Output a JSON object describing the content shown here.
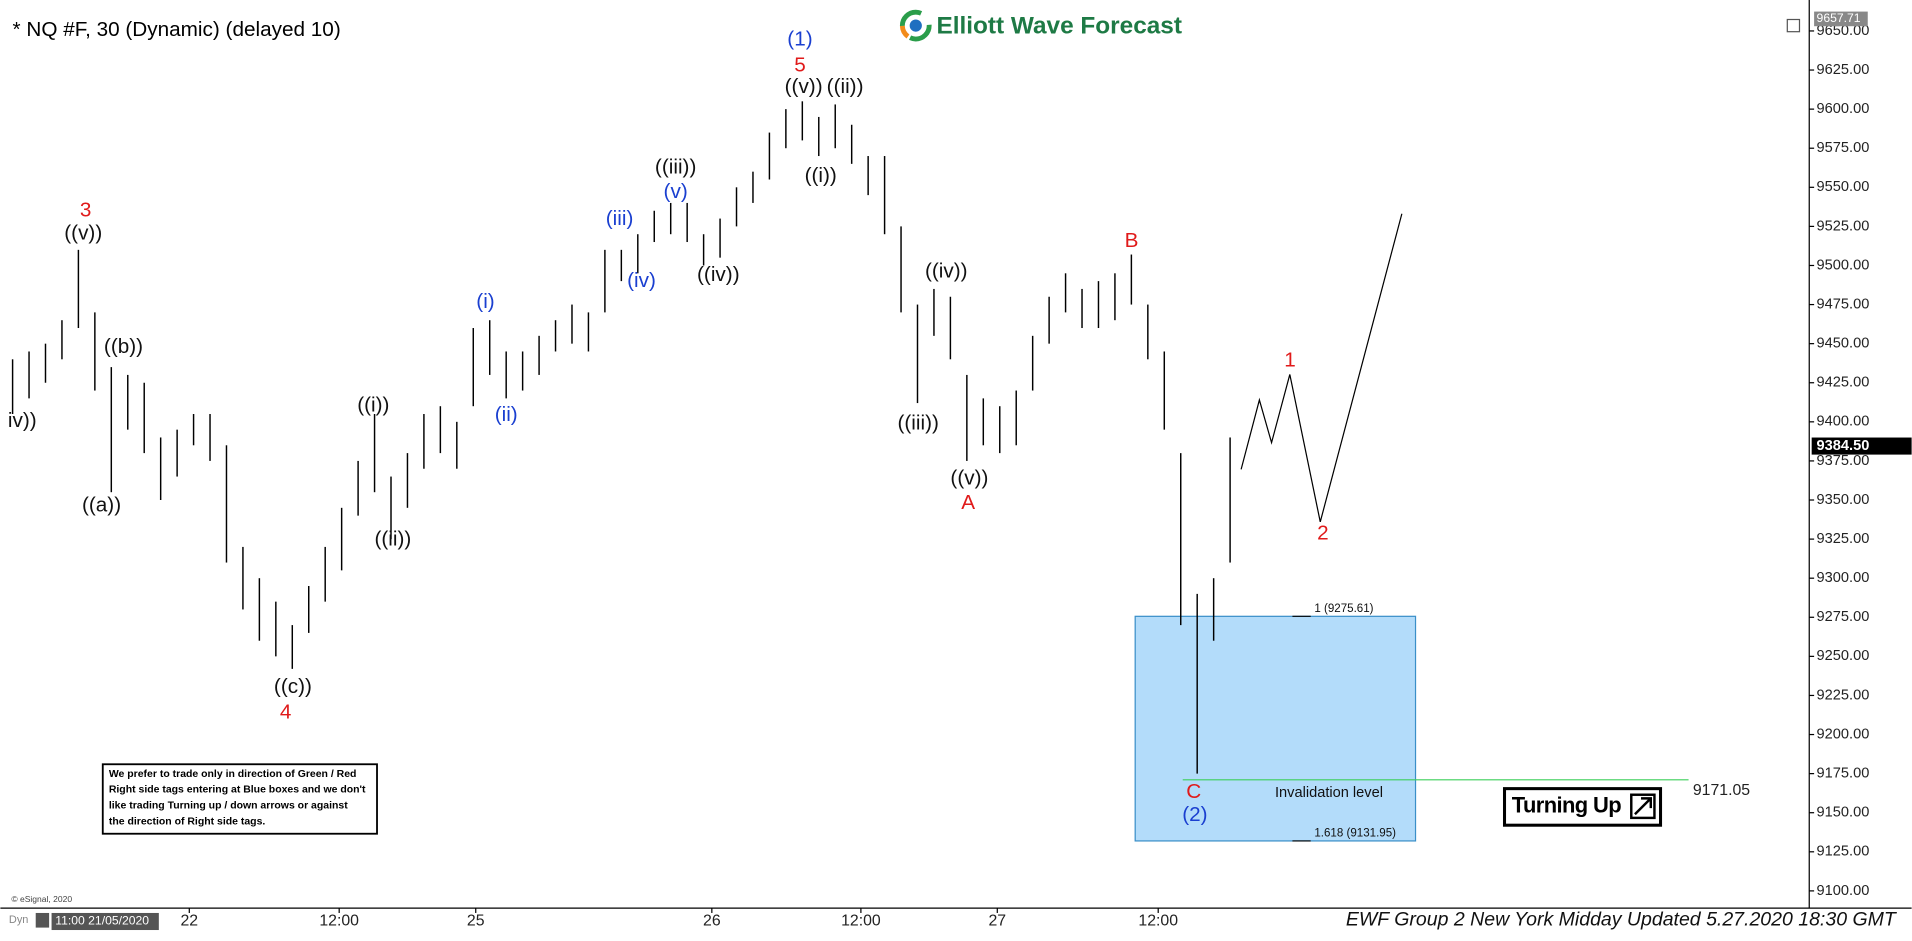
{
  "chart_data": {
    "type": "hilo",
    "title": "* NQ #F, 30 (Dynamic) (delayed 10)",
    "logo": "Elliott Wave Forecast",
    "color": "#000000",
    "high": [
      9440,
      9445,
      9450,
      9465,
      9510,
      9470,
      9435,
      9430,
      9425,
      9390,
      9395,
      9405,
      9405,
      9385,
      9320,
      9300,
      9285,
      9270,
      9295,
      9320,
      9345,
      9375,
      9405,
      9365,
      9380,
      9405,
      9410,
      9400,
      9460,
      9465,
      9445,
      9445,
      9455,
      9465,
      9475,
      9470,
      9510,
      9510,
      9520,
      9535,
      9540,
      9540,
      9520,
      9530,
      9550,
      9560,
      9585,
      9600,
      9605,
      9595,
      9603,
      9590,
      9570,
      9570,
      9525,
      9475,
      9485,
      9480,
      9430,
      9415,
      9410,
      9420,
      9455,
      9480,
      9495,
      9485,
      9490,
      9495,
      9507,
      9475,
      9445,
      9380,
      9290,
      9300,
      9390
    ],
    "low": [
      9405,
      9415,
      9425,
      9440,
      9460,
      9420,
      9355,
      9395,
      9380,
      9350,
      9365,
      9385,
      9375,
      9310,
      9280,
      9260,
      9250,
      9242,
      9265,
      9285,
      9305,
      9340,
      9355,
      9325,
      9345,
      9370,
      9380,
      9370,
      9410,
      9430,
      9415,
      9420,
      9430,
      9445,
      9450,
      9445,
      9470,
      9490,
      9495,
      9515,
      9520,
      9515,
      9500,
      9505,
      9525,
      9540,
      9555,
      9575,
      9580,
      9570,
      9575,
      9565,
      9545,
      9520,
      9470,
      9412,
      9455,
      9440,
      9375,
      9385,
      9380,
      9385,
      9420,
      9450,
      9470,
      9460,
      9460,
      9465,
      9475,
      9440,
      9395,
      9270,
      9175,
      9260,
      9310
    ],
    "xlim": [
      -0.15,
      109.2
    ],
    "xticks": [
      {
        "value": 10.74,
        "label": "22"
      },
      {
        "value": 19.85,
        "label": "12:00"
      },
      {
        "value": 28.15,
        "label": "25"
      },
      {
        "value": 42.5,
        "label": "26"
      },
      {
        "value": 51.56,
        "label": "12:00"
      },
      {
        "value": 59.85,
        "label": "27"
      },
      {
        "value": 69.63,
        "label": "12:00"
      }
    ],
    "ylim": [
      9089,
      9662
    ],
    "yticks": [
      {
        "value": 9100,
        "label": "9100.00"
      },
      {
        "value": 9125,
        "label": "9125.00"
      },
      {
        "value": 9150,
        "label": "9150.00"
      },
      {
        "value": 9175,
        "label": "9175.00"
      },
      {
        "value": 9200,
        "label": "9200.00"
      },
      {
        "value": 9225,
        "label": "9225.00"
      },
      {
        "value": 9250,
        "label": "9250.00"
      },
      {
        "value": 9275,
        "label": "9275.00"
      },
      {
        "value": 9300,
        "label": "9300.00"
      },
      {
        "value": 9325,
        "label": "9325.00"
      },
      {
        "value": 9350,
        "label": "9350.00"
      },
      {
        "value": 9375,
        "label": "9375.00"
      },
      {
        "value": 9400,
        "label": "9400.00"
      },
      {
        "value": 9425,
        "label": "9425.00"
      },
      {
        "value": 9450,
        "label": "9450.00"
      },
      {
        "value": 9475,
        "label": "9475.00"
      },
      {
        "value": 9500,
        "label": "9500.00"
      },
      {
        "value": 9525,
        "label": "9525.00"
      },
      {
        "value": 9550,
        "label": "9550.00"
      },
      {
        "value": 9575,
        "label": "9575.00"
      },
      {
        "value": 9600,
        "label": "9600.00"
      },
      {
        "value": 9625,
        "label": "9625.00"
      },
      {
        "value": 9650,
        "label": "9650.00"
      }
    ],
    "last_price": {
      "value": 9384.5,
      "label": "9384.50"
    },
    "top_price": {
      "value": 9657.71,
      "label": "9657.71"
    },
    "box": [
      {
        "value": 9275.61,
        "label": "1 (9275.61)"
      },
      {
        "value": 9131.95,
        "label": "1.618 (9131.95)"
      }
    ],
    "box_color": "#b3dcfa",
    "invalidation": 9171.05,
    "invalidation_color": "#3ccf5a",
    "invalidation_label": "Invalidation level",
    "projection": {
      "x": [
        74.67,
        75.78,
        76.52,
        77.63,
        79.48,
        84.44
      ],
      "y": [
        9369.6,
        9414,
        9386.7,
        9430.3,
        9336,
        9533.1
      ]
    },
    "annotations": [
      "3",
      "((v))",
      "iv))",
      "((b))",
      "((a))",
      "((c))",
      "4",
      "((i))",
      "((ii))",
      "(i)",
      "(ii)",
      "(iii)",
      "(iv)",
      "((iii))",
      "(v)",
      "((iv))",
      "(1)",
      "5",
      "((v))",
      "((ii))",
      "((i))",
      "((iii))",
      "((iv))",
      "((v))",
      "A",
      "B",
      "C",
      "(2)",
      "1",
      "2"
    ],
    "note": [
      "We prefer to trade only in direction of Green / Red",
      "Right side tags entering at Blue boxes and we don't",
      "like trading Turning up / down arrows or against",
      "the direction of Right side tags."
    ],
    "turning_label": "Turning Up",
    "copyright": "© eSignal, 2020",
    "dyn_label": "Dyn",
    "start_label": "11:00 21/05/2020",
    "footer": "EWF Group 2 New York Midday Updated 5.27.2020 18:30 GMT"
  }
}
